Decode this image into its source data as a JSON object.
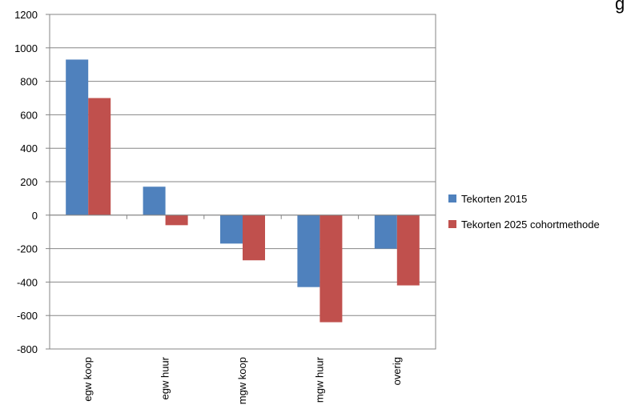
{
  "chart_data": {
    "type": "bar",
    "title_fragment": "g",
    "categories": [
      "egw koop",
      "egw huur",
      "mgw koop",
      "mgw huur",
      "overig"
    ],
    "series": [
      {
        "name": "Tekorten 2015",
        "color": "#4F81BD",
        "values": [
          930,
          170,
          -170,
          -430,
          -200
        ]
      },
      {
        "name": "Tekorten 2025 cohortmethode",
        "color": "#C0504D",
        "values": [
          700,
          -60,
          -270,
          -640,
          -420
        ]
      }
    ],
    "ylim": [
      -800,
      1200
    ],
    "yticks": [
      1200,
      1000,
      800,
      600,
      400,
      200,
      0,
      -200,
      -400,
      -600,
      -800
    ],
    "grid": true,
    "legend_position": "right"
  }
}
